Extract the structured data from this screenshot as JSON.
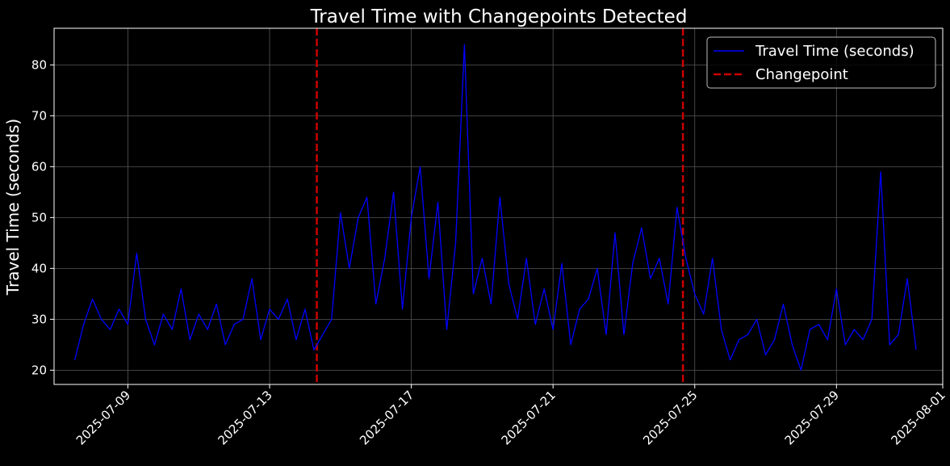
{
  "chart_data": {
    "type": "line",
    "title": "Travel Time with Changepoints Detected",
    "xlabel": "",
    "ylabel": "Travel Time (seconds)",
    "x_ticks": [
      "2025-07-09",
      "2025-07-13",
      "2025-07-17",
      "2025-07-21",
      "2025-07-25",
      "2025-07-29",
      "2025-08-01"
    ],
    "xlim": [
      "2025-07-06T22:00",
      "2025-08-01T00:00"
    ],
    "y_ticks": [
      20,
      30,
      40,
      50,
      60,
      70,
      80
    ],
    "ylim": [
      17.2,
      87.2
    ],
    "grid": true,
    "legend_position": "top-right",
    "colors": {
      "background": "#000000",
      "series": "#0000ff",
      "changepoint": "#cc0000",
      "grid": "#555555",
      "text": "#ffffff"
    },
    "series": [
      {
        "name": "Travel Time (seconds)",
        "style": "solid",
        "x": [
          "2025-07-07T12:00",
          "2025-07-07T18:00",
          "2025-07-08T00:00",
          "2025-07-08T06:00",
          "2025-07-08T12:00",
          "2025-07-08T18:00",
          "2025-07-09T00:00",
          "2025-07-09T06:00",
          "2025-07-09T12:00",
          "2025-07-09T18:00",
          "2025-07-10T00:00",
          "2025-07-10T06:00",
          "2025-07-10T12:00",
          "2025-07-10T18:00",
          "2025-07-11T00:00",
          "2025-07-11T06:00",
          "2025-07-11T12:00",
          "2025-07-11T18:00",
          "2025-07-12T00:00",
          "2025-07-12T06:00",
          "2025-07-12T12:00",
          "2025-07-12T18:00",
          "2025-07-13T00:00",
          "2025-07-13T06:00",
          "2025-07-13T12:00",
          "2025-07-13T18:00",
          "2025-07-14T00:00",
          "2025-07-14T06:00",
          "2025-07-14T12:00",
          "2025-07-14T18:00",
          "2025-07-15T00:00",
          "2025-07-15T06:00",
          "2025-07-15T12:00",
          "2025-07-15T18:00",
          "2025-07-16T00:00",
          "2025-07-16T06:00",
          "2025-07-16T12:00",
          "2025-07-16T18:00",
          "2025-07-17T00:00",
          "2025-07-17T06:00",
          "2025-07-17T12:00",
          "2025-07-17T18:00",
          "2025-07-18T00:00",
          "2025-07-18T06:00",
          "2025-07-18T12:00",
          "2025-07-18T18:00",
          "2025-07-19T00:00",
          "2025-07-19T06:00",
          "2025-07-19T12:00",
          "2025-07-19T18:00",
          "2025-07-20T00:00",
          "2025-07-20T06:00",
          "2025-07-20T12:00",
          "2025-07-20T18:00",
          "2025-07-21T00:00",
          "2025-07-21T06:00",
          "2025-07-21T12:00",
          "2025-07-21T18:00",
          "2025-07-22T00:00",
          "2025-07-22T06:00",
          "2025-07-22T12:00",
          "2025-07-22T18:00",
          "2025-07-23T00:00",
          "2025-07-23T06:00",
          "2025-07-23T12:00",
          "2025-07-23T18:00",
          "2025-07-24T00:00",
          "2025-07-24T06:00",
          "2025-07-24T12:00",
          "2025-07-24T18:00",
          "2025-07-25T00:00",
          "2025-07-25T06:00",
          "2025-07-25T12:00",
          "2025-07-25T18:00",
          "2025-07-26T00:00",
          "2025-07-26T06:00",
          "2025-07-26T12:00",
          "2025-07-26T18:00",
          "2025-07-27T00:00",
          "2025-07-27T06:00",
          "2025-07-27T12:00",
          "2025-07-27T18:00",
          "2025-07-28T00:00",
          "2025-07-28T06:00",
          "2025-07-28T12:00",
          "2025-07-28T18:00",
          "2025-07-29T00:00",
          "2025-07-29T06:00",
          "2025-07-29T12:00",
          "2025-07-29T18:00",
          "2025-07-30T00:00",
          "2025-07-30T06:00",
          "2025-07-30T12:00",
          "2025-07-30T18:00",
          "2025-07-31T00:00",
          "2025-07-31T06:00"
        ],
        "values": [
          22,
          29,
          34,
          30,
          28,
          32,
          29,
          43,
          30,
          25,
          31,
          28,
          36,
          26,
          31,
          28,
          33,
          25,
          29,
          30,
          38,
          26,
          32,
          30,
          34,
          26,
          32,
          24,
          27,
          30,
          51,
          40,
          50,
          54,
          33,
          42,
          55,
          32,
          50,
          60,
          38,
          53,
          28,
          45,
          84,
          35,
          42,
          33,
          54,
          37,
          30,
          42,
          29,
          36,
          28,
          41,
          25,
          32,
          34,
          40,
          27,
          47,
          27,
          41,
          48,
          38,
          42,
          33,
          52,
          42,
          35,
          31,
          42,
          28,
          22,
          26,
          27,
          30,
          23,
          26,
          33,
          25,
          20,
          28,
          29,
          26,
          36,
          25,
          28,
          26,
          30,
          59,
          25,
          27,
          38,
          24
        ]
      },
      {
        "name": "Changepoint",
        "style": "dashed",
        "x": [
          "2025-07-14T08:00",
          "2025-07-24T16:00"
        ]
      }
    ]
  }
}
